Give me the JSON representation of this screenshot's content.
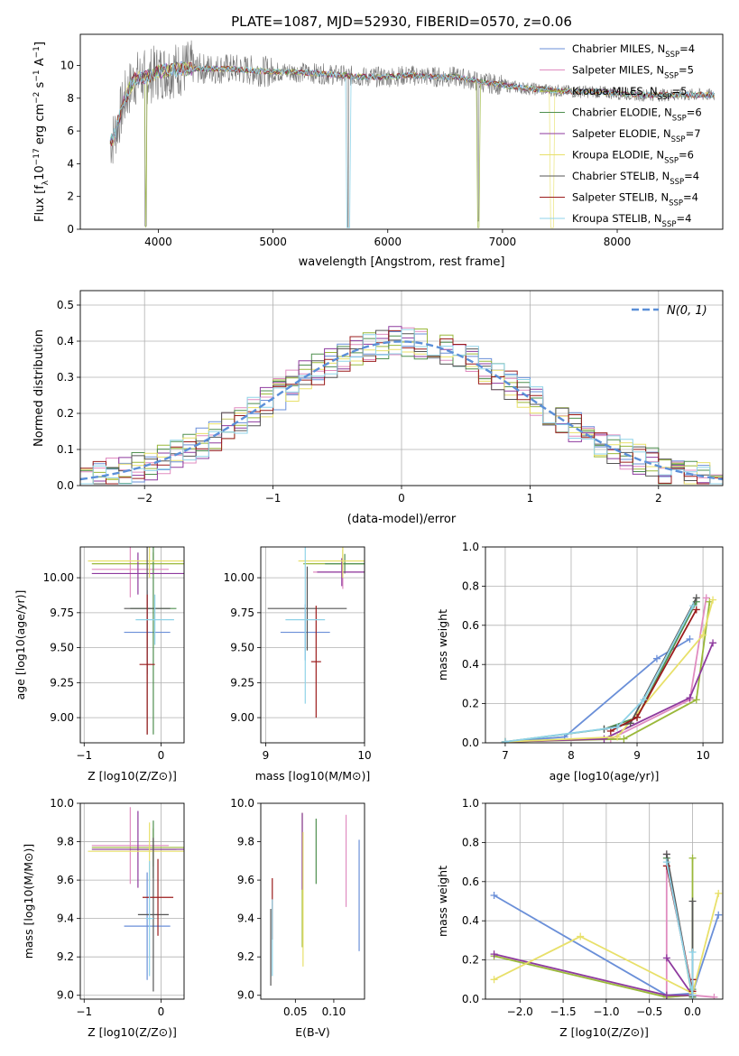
{
  "figure_title": "PLATE=1087, MJD=52930, FIBERID=0570, z=0.06",
  "colors": [
    "#6a8fd8",
    "#e08cc0",
    "#9ab83a",
    "#4f8f4f",
    "#8e3a9e",
    "#e8e06a",
    "#555555",
    "#9b1c1c",
    "#8fd3e8"
  ],
  "chart_data": [
    {
      "id": "spectrum",
      "type": "line",
      "title": "PLATE=1087, MJD=52930, FIBERID=0570, z=0.06",
      "xlabel": "wavelength [Angstrom, rest frame]",
      "ylabel": "Flux [f_λ 10^-17 erg cm^-2 s^-1 A^-1]",
      "xlim": [
        3320,
        8920
      ],
      "ylim": [
        0,
        11.9
      ],
      "xticks": [
        "4000",
        "5000",
        "6000",
        "7000",
        "8000"
      ],
      "xtick_values": [
        4000,
        5000,
        6000,
        7000,
        8000
      ],
      "yticks": [
        "0",
        "2",
        "4",
        "6",
        "8",
        "10"
      ],
      "ytick_values": [
        0,
        2,
        4,
        6,
        8,
        10
      ],
      "grid": false,
      "legend_placement": "upper-right",
      "legend": [
        {
          "label": "Chabrier MILES, N",
          "sub": "SSP",
          "suffix": "=4"
        },
        {
          "label": "Salpeter MILES, N",
          "sub": "SSP",
          "suffix": "=5"
        },
        {
          "label": "Kroupa MILES, N",
          "sub": "SSP",
          "suffix": "=5"
        },
        {
          "label": "Chabrier ELODIE, N",
          "sub": "SSP",
          "suffix": "=6"
        },
        {
          "label": "Salpeter ELODIE, N",
          "sub": "SSP",
          "suffix": "=7"
        },
        {
          "label": "Kroupa ELODIE, N",
          "sub": "SSP",
          "suffix": "=6"
        },
        {
          "label": "Chabrier STELIB, N",
          "sub": "SSP",
          "suffix": "=4"
        },
        {
          "label": "Salpeter STELIB, N",
          "sub": "SSP",
          "suffix": "=4"
        },
        {
          "label": "Kroupa STELIB, N",
          "sub": "SSP",
          "suffix": "=4"
        }
      ],
      "continuum_x": [
        3600,
        3650,
        3700,
        3750,
        3800,
        3900,
        4000,
        4100,
        4200,
        4400,
        4600,
        4800,
        5000,
        5200,
        5400,
        5600,
        5800,
        6000,
        6200,
        6400,
        6600,
        6800,
        7000,
        7200,
        7400,
        7600,
        7800,
        8000,
        8200,
        8400,
        8600,
        8800
      ],
      "continuum_y": [
        5.4,
        6.5,
        7.8,
        8.6,
        9.2,
        9.3,
        9.6,
        9.7,
        9.8,
        9.8,
        9.8,
        9.7,
        9.6,
        9.6,
        9.5,
        9.4,
        9.3,
        9.3,
        9.4,
        9.3,
        9.3,
        9.0,
        8.8,
        8.6,
        8.5,
        8.4,
        8.4,
        8.3,
        8.2,
        8.2,
        8.2,
        8.2
      ]
    },
    {
      "id": "residuals",
      "type": "line",
      "xlabel": "(data-model)/error",
      "ylabel": "Normed distribution",
      "xlim": [
        -2.5,
        2.5
      ],
      "ylim": [
        0,
        0.54
      ],
      "xticks": [
        "−2",
        "−1",
        "0",
        "1",
        "2"
      ],
      "xtick_values": [
        -2,
        -1,
        0,
        1,
        2
      ],
      "yticks": [
        "0.0",
        "0.1",
        "0.2",
        "0.3",
        "0.4",
        "0.5"
      ],
      "ytick_values": [
        0,
        0.1,
        0.2,
        0.3,
        0.4,
        0.5
      ],
      "grid": true,
      "legend_placement": "upper-right",
      "legend_label": "N(0, 1)",
      "bin_width": 0.1
    },
    {
      "id": "age-vs-Z",
      "type": "scatter",
      "xlabel": "Z [log10(Z/Z⊙)]",
      "ylabel": "age [log10(age/yr)]",
      "xlim": [
        -1.05,
        0.3
      ],
      "ylim": [
        8.82,
        10.22
      ],
      "xticks": [
        "−1",
        "0"
      ],
      "xtick_values": [
        -1,
        0
      ],
      "yticks": [
        "9.00",
        "9.25",
        "9.50",
        "9.75",
        "10.00"
      ],
      "ytick_values": [
        9,
        9.25,
        9.5,
        9.75,
        10
      ],
      "grid": true,
      "series": [
        {
          "x": -0.18,
          "y": 9.61,
          "xerr": 0.3,
          "yerr": 0.3
        },
        {
          "x": -0.4,
          "y": 10.06,
          "xerr": 0.5,
          "yerr": 0.2
        },
        {
          "x": -0.1,
          "y": 10.1,
          "xerr": 0.8,
          "yerr": 0.08
        },
        {
          "x": -0.1,
          "y": 9.78,
          "xerr": 0.3,
          "yerr": 0.9
        },
        {
          "x": -0.3,
          "y": 10.03,
          "xerr": 0.6,
          "yerr": 0.15
        },
        {
          "x": -0.15,
          "y": 10.12,
          "xerr": 0.8,
          "yerr": 0.12
        },
        {
          "x": -0.18,
          "y": 9.78,
          "xerr": 0.3,
          "yerr": 0.9
        },
        {
          "x": -0.18,
          "y": 9.38,
          "xerr": 0.1,
          "yerr": 0.5
        },
        {
          "x": -0.08,
          "y": 9.7,
          "xerr": 0.25,
          "yerr": 0.18
        }
      ]
    },
    {
      "id": "age-vs-mass",
      "type": "scatter",
      "xlabel": "mass [log10(M/M⊙)]",
      "xlim": [
        8.95,
        10.0
      ],
      "ylim": [
        8.82,
        10.22
      ],
      "xticks": [
        "9",
        "10"
      ],
      "xtick_values": [
        9,
        10
      ],
      "yticks": [
        "9.00",
        "9.25",
        "9.50",
        "9.75",
        "10.00"
      ],
      "ytick_values": [
        9,
        9.25,
        9.5,
        9.75,
        10
      ],
      "grid": true,
      "series": [
        {
          "x": 9.4,
          "y": 9.61,
          "xerr": 0.25,
          "yerr": 0.2
        },
        {
          "x": 9.78,
          "y": 10.04,
          "xerr": 0.3,
          "yerr": 0.12
        },
        {
          "x": 9.78,
          "y": 10.1,
          "xerr": 0.4,
          "yerr": 0.1
        },
        {
          "x": 9.8,
          "y": 10.1,
          "xerr": 0.2,
          "yerr": 0.07
        },
        {
          "x": 9.77,
          "y": 10.04,
          "xerr": 0.25,
          "yerr": 0.1
        },
        {
          "x": 9.78,
          "y": 10.12,
          "xerr": 0.45,
          "yerr": 0.12
        },
        {
          "x": 9.42,
          "y": 9.78,
          "xerr": 0.4,
          "yerr": 0.3
        },
        {
          "x": 9.51,
          "y": 9.4,
          "xerr": 0.05,
          "yerr": 0.4
        },
        {
          "x": 9.4,
          "y": 9.7,
          "xerr": 0.2,
          "yerr": 0.6
        }
      ]
    },
    {
      "id": "massweight-vs-age",
      "type": "line",
      "xlabel": "age [log10(age/yr)]",
      "ylabel": "mass weight",
      "xlim": [
        6.7,
        10.3
      ],
      "ylim": [
        0,
        1.0
      ],
      "xticks": [
        "7",
        "8",
        "9",
        "10"
      ],
      "xtick_values": [
        7,
        8,
        9,
        10
      ],
      "yticks": [
        "0.0",
        "0.2",
        "0.4",
        "0.6",
        "0.8",
        "1.0"
      ],
      "ytick_values": [
        0,
        0.2,
        0.4,
        0.6,
        0.8,
        1.0
      ],
      "grid": true,
      "series": [
        {
          "x": [
            7.0,
            7.9,
            9.3,
            9.8
          ],
          "y": [
            0.005,
            0.03,
            0.43,
            0.53
          ]
        },
        {
          "x": [
            7.0,
            8.6,
            9.8,
            10.05
          ],
          "y": [
            0.005,
            0.02,
            0.22,
            0.74
          ]
        },
        {
          "x": [
            7.0,
            8.8,
            9.9,
            10.1
          ],
          "y": [
            0.005,
            0.02,
            0.22,
            0.72
          ]
        },
        {
          "x": [
            7.0,
            8.5,
            9.0,
            9.9
          ],
          "y": [
            0.005,
            0.07,
            0.13,
            0.72
          ]
        },
        {
          "x": [
            7.0,
            8.5,
            9.8,
            10.15
          ],
          "y": [
            0.005,
            0.02,
            0.23,
            0.51
          ]
        },
        {
          "x": [
            7.0,
            8.7,
            10.0,
            10.15
          ],
          "y": [
            0.005,
            0.03,
            0.55,
            0.73
          ]
        },
        {
          "x": [
            8.5,
            8.9,
            9.9
          ],
          "y": [
            0.07,
            0.1,
            0.74
          ]
        },
        {
          "x": [
            8.6,
            9.0,
            9.9
          ],
          "y": [
            0.06,
            0.13,
            0.68
          ]
        },
        {
          "x": [
            7.0,
            8.7,
            9.1,
            9.85
          ],
          "y": [
            0.005,
            0.08,
            0.22,
            0.7
          ]
        }
      ]
    },
    {
      "id": "mass-vs-Z",
      "type": "scatter",
      "xlabel": "Z [log10(Z/Z⊙)]",
      "ylabel": "mass [log10(M/M⊙)]",
      "xlim": [
        -1.05,
        0.3
      ],
      "ylim": [
        8.98,
        10.0
      ],
      "xticks": [
        "−1",
        "0"
      ],
      "xtick_values": [
        -1,
        0
      ],
      "yticks": [
        "9.0",
        "9.2",
        "9.4",
        "9.6",
        "9.8",
        "10.0"
      ],
      "ytick_values": [
        9,
        9.2,
        9.4,
        9.6,
        9.8,
        10
      ],
      "grid": true,
      "series": [
        {
          "x": -0.18,
          "y": 9.36,
          "xerr": 0.3,
          "yerr": 0.28
        },
        {
          "x": -0.4,
          "y": 9.78,
          "xerr": 0.5,
          "yerr": 0.2
        },
        {
          "x": -0.1,
          "y": 9.77,
          "xerr": 0.8,
          "yerr": 0.1
        },
        {
          "x": -0.1,
          "y": 9.76,
          "xerr": 0.3,
          "yerr": 0.15
        },
        {
          "x": -0.3,
          "y": 9.76,
          "xerr": 0.6,
          "yerr": 0.2
        },
        {
          "x": -0.15,
          "y": 9.75,
          "xerr": 0.8,
          "yerr": 0.15
        },
        {
          "x": -0.1,
          "y": 9.42,
          "xerr": 0.2,
          "yerr": 0.4
        },
        {
          "x": -0.04,
          "y": 9.51,
          "xerr": 0.2,
          "yerr": 0.2
        },
        {
          "x": -0.15,
          "y": 9.4,
          "xerr": 0.05,
          "yerr": 0.3
        }
      ]
    },
    {
      "id": "mass-vs-EBV",
      "type": "scatter",
      "xlabel": "E(B-V)",
      "xlim": [
        0.005,
        0.14
      ],
      "ylim": [
        8.98,
        10.0
      ],
      "xticks": [
        "0.05",
        "0.10"
      ],
      "xtick_values": [
        0.05,
        0.1
      ],
      "yticks": [
        "9.0",
        "9.2",
        "9.4",
        "9.6",
        "9.8",
        "10.0"
      ],
      "ytick_values": [
        9,
        9.2,
        9.4,
        9.6,
        9.8,
        10
      ],
      "grid": false,
      "series": [
        {
          "x": 0.133,
          "y": 9.52,
          "yerr": 0.29
        },
        {
          "x": 0.116,
          "y": 9.7,
          "yerr": 0.24
        },
        {
          "x": 0.059,
          "y": 9.6,
          "yerr": 0.35
        },
        {
          "x": 0.077,
          "y": 9.75,
          "yerr": 0.17
        },
        {
          "x": 0.059,
          "y": 9.75,
          "yerr": 0.2
        },
        {
          "x": 0.06,
          "y": 9.5,
          "yerr": 0.35
        },
        {
          "x": 0.018,
          "y": 9.25,
          "yerr": 0.2
        },
        {
          "x": 0.02,
          "y": 9.45,
          "yerr": 0.16
        },
        {
          "x": 0.02,
          "y": 9.3,
          "yerr": 0.2
        }
      ]
    },
    {
      "id": "massweight-vs-Z",
      "type": "line",
      "xlabel": "Z [log10(Z/Z⊙)]",
      "ylabel": "mass weight",
      "xlim": [
        -2.4,
        0.35
      ],
      "ylim": [
        0,
        1.0
      ],
      "xticks": [
        "−2.0",
        "−1.5",
        "−1.0",
        "−0.5",
        "0.0"
      ],
      "xtick_values": [
        -2,
        -1.5,
        -1,
        -0.5,
        0
      ],
      "yticks": [
        "0.0",
        "0.2",
        "0.4",
        "0.6",
        "0.8",
        "1.0"
      ],
      "ytick_values": [
        0,
        0.2,
        0.4,
        0.6,
        0.8,
        1.0
      ],
      "grid": true,
      "series": [
        {
          "x": [
            -2.3,
            -0.3,
            0.0,
            0.3
          ],
          "y": [
            0.53,
            0.02,
            0.03,
            0.43
          ]
        },
        {
          "x": [
            -0.3,
            -0.3,
            0.0,
            0.25
          ],
          "y": [
            0.74,
            0.01,
            0.02,
            0.01
          ]
        },
        {
          "x": [
            -2.3,
            -0.3,
            0.0,
            0.0
          ],
          "y": [
            0.22,
            0.01,
            0.02,
            0.72
          ]
        },
        {
          "x": [
            -0.3,
            0.0,
            0.0
          ],
          "y": [
            0.72,
            0.01,
            0.05
          ]
        },
        {
          "x": [
            -2.3,
            -0.3,
            0.0,
            -0.3
          ],
          "y": [
            0.23,
            0.02,
            0.02,
            0.21
          ]
        },
        {
          "x": [
            -2.3,
            -1.3,
            0.0,
            0.3
          ],
          "y": [
            0.1,
            0.32,
            0.03,
            0.54
          ]
        },
        {
          "x": [
            -0.3,
            0.0,
            0.0
          ],
          "y": [
            0.74,
            0.02,
            0.5
          ]
        },
        {
          "x": [
            -0.3,
            0.0,
            0.0
          ],
          "y": [
            0.68,
            0.04,
            0.1
          ]
        },
        {
          "x": [
            -0.3,
            0.0,
            0.0
          ],
          "y": [
            0.7,
            0.02,
            0.24
          ]
        }
      ]
    }
  ]
}
